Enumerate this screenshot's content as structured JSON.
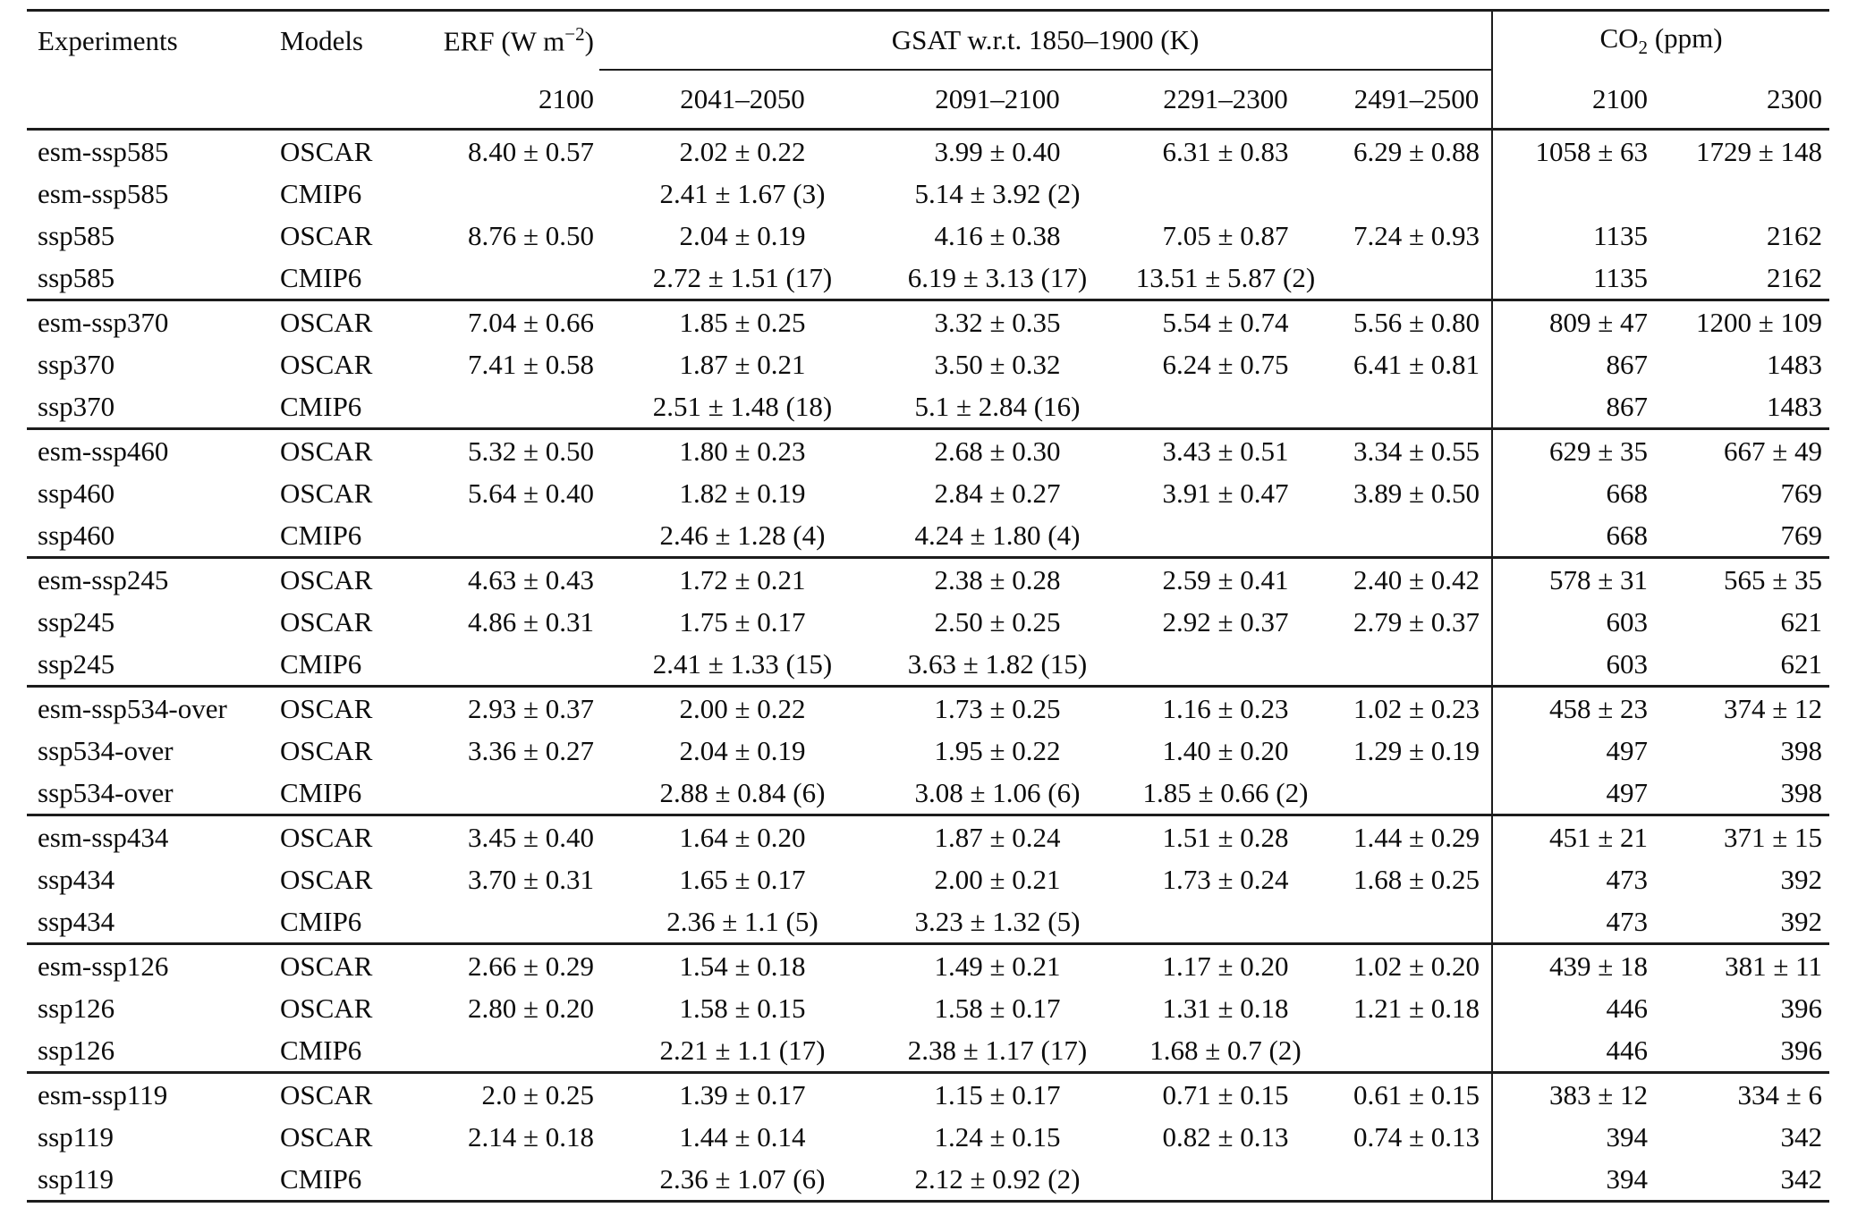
{
  "table": {
    "header": {
      "experiments": "Experiments",
      "models": "Models",
      "erf_prefix": "ERF (W m",
      "erf_sup": "−2",
      "erf_suffix": ")",
      "gsat": "GSAT w.r.t. 1850–1900 (K)",
      "co2_prefix": "CO",
      "co2_sub": "2",
      "co2_suffix": " (ppm)",
      "sub": {
        "erf": "2100",
        "gsat": [
          "2041–2050",
          "2091–2100",
          "2291–2300",
          "2491–2500"
        ],
        "co2": [
          "2100",
          "2300"
        ]
      }
    },
    "blocks": [
      {
        "rows": [
          {
            "experiment": "esm-ssp585",
            "model": "OSCAR",
            "erf": "8.40 ± 0.57",
            "gsat": [
              "2.02 ± 0.22",
              "3.99 ± 0.40",
              "6.31 ± 0.83",
              "6.29 ± 0.88"
            ],
            "co2": [
              "1058 ± 63",
              "1729 ± 148"
            ]
          },
          {
            "experiment": "esm-ssp585",
            "model": "CMIP6",
            "erf": "",
            "gsat": [
              "2.41 ± 1.67 (3)",
              "5.14 ± 3.92 (2)",
              "",
              ""
            ],
            "co2": [
              "",
              ""
            ]
          },
          {
            "experiment": "ssp585",
            "model": "OSCAR",
            "erf": "8.76 ± 0.50",
            "gsat": [
              "2.04 ± 0.19",
              "4.16 ± 0.38",
              "7.05 ± 0.87",
              "7.24 ± 0.93"
            ],
            "co2": [
              "1135",
              "2162"
            ]
          },
          {
            "experiment": "ssp585",
            "model": "CMIP6",
            "erf": "",
            "gsat": [
              "2.72 ± 1.51 (17)",
              "6.19 ± 3.13 (17)",
              "13.51 ± 5.87 (2)",
              ""
            ],
            "co2": [
              "1135",
              "2162"
            ]
          }
        ]
      },
      {
        "rows": [
          {
            "experiment": "esm-ssp370",
            "model": "OSCAR",
            "erf": "7.04 ± 0.66",
            "gsat": [
              "1.85 ± 0.25",
              "3.32 ± 0.35",
              "5.54 ± 0.74",
              "5.56 ± 0.80"
            ],
            "co2": [
              "809 ± 47",
              "1200 ± 109"
            ]
          },
          {
            "experiment": "ssp370",
            "model": "OSCAR",
            "erf": "7.41 ± 0.58",
            "gsat": [
              "1.87 ± 0.21",
              "3.50 ± 0.32",
              "6.24 ± 0.75",
              "6.41 ± 0.81"
            ],
            "co2": [
              "867",
              "1483"
            ]
          },
          {
            "experiment": "ssp370",
            "model": "CMIP6",
            "erf": "",
            "gsat": [
              "2.51 ± 1.48 (18)",
              "5.1 ± 2.84 (16)",
              "",
              ""
            ],
            "co2": [
              "867",
              "1483"
            ]
          }
        ]
      },
      {
        "rows": [
          {
            "experiment": "esm-ssp460",
            "model": "OSCAR",
            "erf": "5.32 ± 0.50",
            "gsat": [
              "1.80 ± 0.23",
              "2.68 ± 0.30",
              "3.43 ± 0.51",
              "3.34 ± 0.55"
            ],
            "co2": [
              "629 ± 35",
              "667 ± 49"
            ]
          },
          {
            "experiment": "ssp460",
            "model": "OSCAR",
            "erf": "5.64 ± 0.40",
            "gsat": [
              "1.82 ± 0.19",
              "2.84 ± 0.27",
              "3.91 ± 0.47",
              "3.89 ± 0.50"
            ],
            "co2": [
              "668",
              "769"
            ]
          },
          {
            "experiment": "ssp460",
            "model": "CMIP6",
            "erf": "",
            "gsat": [
              "2.46 ± 1.28 (4)",
              "4.24 ± 1.80 (4)",
              "",
              ""
            ],
            "co2": [
              "668",
              "769"
            ]
          }
        ]
      },
      {
        "rows": [
          {
            "experiment": "esm-ssp245",
            "model": "OSCAR",
            "erf": "4.63 ± 0.43",
            "gsat": [
              "1.72 ± 0.21",
              "2.38 ± 0.28",
              "2.59 ± 0.41",
              "2.40 ± 0.42"
            ],
            "co2": [
              "578 ± 31",
              "565 ± 35"
            ]
          },
          {
            "experiment": "ssp245",
            "model": "OSCAR",
            "erf": "4.86 ± 0.31",
            "gsat": [
              "1.75 ± 0.17",
              "2.50 ± 0.25",
              "2.92 ± 0.37",
              "2.79 ± 0.37"
            ],
            "co2": [
              "603",
              "621"
            ]
          },
          {
            "experiment": "ssp245",
            "model": "CMIP6",
            "erf": "",
            "gsat": [
              "2.41 ± 1.33 (15)",
              "3.63 ± 1.82 (15)",
              "",
              ""
            ],
            "co2": [
              "603",
              "621"
            ]
          }
        ]
      },
      {
        "rows": [
          {
            "experiment": "esm-ssp534-over",
            "model": "OSCAR",
            "erf": "2.93 ± 0.37",
            "gsat": [
              "2.00 ± 0.22",
              "1.73 ± 0.25",
              "1.16 ± 0.23",
              "1.02 ± 0.23"
            ],
            "co2": [
              "458 ± 23",
              "374 ± 12"
            ]
          },
          {
            "experiment": "ssp534-over",
            "model": "OSCAR",
            "erf": "3.36 ± 0.27",
            "gsat": [
              "2.04 ± 0.19",
              "1.95 ± 0.22",
              "1.40 ± 0.20",
              "1.29 ± 0.19"
            ],
            "co2": [
              "497",
              "398"
            ]
          },
          {
            "experiment": "ssp534-over",
            "model": "CMIP6",
            "erf": "",
            "gsat": [
              "2.88 ± 0.84 (6)",
              "3.08 ± 1.06 (6)",
              "1.85 ± 0.66 (2)",
              ""
            ],
            "co2": [
              "497",
              "398"
            ]
          }
        ]
      },
      {
        "rows": [
          {
            "experiment": "esm-ssp434",
            "model": "OSCAR",
            "erf": "3.45 ± 0.40",
            "gsat": [
              "1.64 ± 0.20",
              "1.87 ± 0.24",
              "1.51 ± 0.28",
              "1.44 ± 0.29"
            ],
            "co2": [
              "451 ± 21",
              "371 ± 15"
            ]
          },
          {
            "experiment": "ssp434",
            "model": "OSCAR",
            "erf": "3.70 ± 0.31",
            "gsat": [
              "1.65 ± 0.17",
              "2.00 ± 0.21",
              "1.73 ± 0.24",
              "1.68 ± 0.25"
            ],
            "co2": [
              "473",
              "392"
            ]
          },
          {
            "experiment": "ssp434",
            "model": "CMIP6",
            "erf": "",
            "gsat": [
              "2.36 ± 1.1 (5)",
              "3.23 ± 1.32 (5)",
              "",
              ""
            ],
            "co2": [
              "473",
              "392"
            ]
          }
        ]
      },
      {
        "rows": [
          {
            "experiment": "esm-ssp126",
            "model": "OSCAR",
            "erf": "2.66 ± 0.29",
            "gsat": [
              "1.54 ± 0.18",
              "1.49 ± 0.21",
              "1.17 ± 0.20",
              "1.02 ± 0.20"
            ],
            "co2": [
              "439 ± 18",
              "381 ± 11"
            ]
          },
          {
            "experiment": "ssp126",
            "model": "OSCAR",
            "erf": "2.80 ± 0.20",
            "gsat": [
              "1.58 ± 0.15",
              "1.58 ± 0.17",
              "1.31 ± 0.18",
              "1.21 ± 0.18"
            ],
            "co2": [
              "446",
              "396"
            ]
          },
          {
            "experiment": "ssp126",
            "model": "CMIP6",
            "erf": "",
            "gsat": [
              "2.21 ± 1.1 (17)",
              "2.38 ± 1.17 (17)",
              "1.68 ± 0.7 (2)",
              ""
            ],
            "co2": [
              "446",
              "396"
            ]
          }
        ]
      },
      {
        "rows": [
          {
            "experiment": "esm-ssp119",
            "model": "OSCAR",
            "erf": "2.0 ± 0.25",
            "gsat": [
              "1.39 ± 0.17",
              "1.15 ± 0.17",
              "0.71 ± 0.15",
              "0.61 ± 0.15"
            ],
            "co2": [
              "383 ± 12",
              "334 ± 6"
            ]
          },
          {
            "experiment": "ssp119",
            "model": "OSCAR",
            "erf": "2.14 ± 0.18",
            "gsat": [
              "1.44 ± 0.14",
              "1.24 ± 0.15",
              "0.82 ± 0.13",
              "0.74 ± 0.13"
            ],
            "co2": [
              "394",
              "342"
            ]
          },
          {
            "experiment": "ssp119",
            "model": "CMIP6",
            "erf": "",
            "gsat": [
              "2.36 ± 1.07 (6)",
              "2.12 ± 0.92 (2)",
              "",
              ""
            ],
            "co2": [
              "394",
              "342"
            ]
          }
        ]
      }
    ]
  }
}
